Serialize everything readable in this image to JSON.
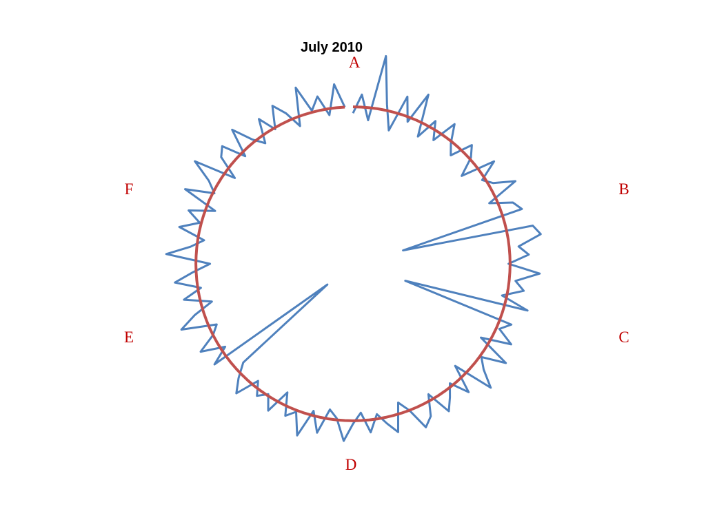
{
  "chart_data": {
    "type": "radar",
    "title": "July 2010",
    "annotations": [
      "A",
      "B",
      "C",
      "D",
      "E",
      "F"
    ],
    "rlim": [
      0,
      140
    ],
    "series": [
      {
        "color": "#4f81bd",
        "values": [
          96,
          108,
          92,
          134,
          104,
          88,
          112,
          97,
          118,
          91,
          105,
          94,
          110,
          99,
          93,
          107,
          101,
          89,
          111,
          98,
          103,
          116,
          95,
          109,
          113,
          33,
          117,
          121,
          106,
          112,
          99,
          119,
          104,
          110,
          97,
          115,
          35,
          108,
          102,
          113,
          94,
          116,
          101,
          107,
          118,
          92,
          110,
          98,
          105,
          112,
          96,
          109,
          114,
          100,
          93,
          111,
          104,
          97,
          108,
          95,
          102,
          113,
          99,
          94,
          110,
          97,
          115,
          101,
          106,
          92,
          108,
          99,
          104,
          96,
          111,
          103,
          94,
          21,
          109,
          97,
          112,
          100,
          95,
          117,
          106,
          93,
          110,
          98,
          114,
          102,
          91,
          119,
          104,
          96,
          113,
          101,
          110,
          94,
          117,
          99,
          106,
          120,
          93,
          108,
          112,
          97,
          115,
          102,
          95,
          110,
          99,
          113,
          105,
          94,
          118,
          101,
          109,
          96,
          115,
          100
        ]
      },
      {
        "color": "#c0504d",
        "values": [
          100,
          100,
          100,
          100,
          100,
          100,
          100,
          100,
          100,
          100,
          100,
          100,
          100,
          100,
          100,
          100,
          100,
          100,
          100,
          100,
          100,
          100,
          100,
          100,
          100,
          100,
          100,
          100,
          100,
          100,
          100,
          100,
          100,
          100,
          100,
          100,
          100,
          100,
          100,
          100,
          100,
          100,
          100,
          100,
          100,
          100,
          100,
          100,
          100,
          100,
          100,
          100,
          100,
          100,
          100,
          100,
          100,
          100,
          100,
          100,
          100,
          100,
          100,
          100,
          100,
          100,
          100,
          100,
          100,
          100,
          100,
          100,
          100,
          100,
          100,
          100,
          100,
          100,
          100,
          100,
          100,
          100,
          100,
          100,
          100,
          100,
          100,
          100,
          100,
          100,
          100,
          100,
          100,
          100,
          100,
          100,
          100,
          100,
          100,
          100,
          100,
          100,
          100,
          100,
          100,
          100,
          100,
          100,
          100,
          100,
          100,
          100,
          100,
          100,
          100,
          100,
          100,
          100,
          100,
          100
        ]
      }
    ]
  }
}
